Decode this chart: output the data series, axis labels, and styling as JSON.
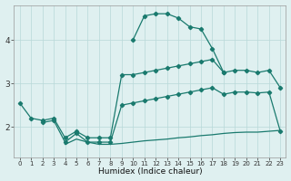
{
  "xlabel": "Humidex (Indice chaleur)",
  "bg_color": "#dff0f0",
  "line_color": "#1a7a6e",
  "grid_color": "#b8d8d8",
  "ylim": [
    1.3,
    4.8
  ],
  "xlim": [
    -0.5,
    23.5
  ],
  "yticks": [
    2,
    3,
    4
  ],
  "xticks": [
    0,
    1,
    2,
    3,
    4,
    5,
    6,
    7,
    8,
    9,
    10,
    11,
    12,
    13,
    14,
    15,
    16,
    17,
    18,
    19,
    20,
    21,
    22,
    23
  ],
  "peak_x": [
    10,
    11,
    12,
    13,
    14,
    15,
    16,
    17,
    18
  ],
  "peak_y": [
    4.0,
    4.55,
    4.6,
    4.6,
    4.5,
    4.3,
    4.25,
    3.8,
    3.25
  ],
  "upper_x": [
    0,
    1,
    2,
    3,
    4,
    5,
    6,
    7,
    8,
    9,
    10,
    11,
    12,
    13,
    14,
    15,
    16,
    17,
    18,
    19,
    20,
    21,
    22,
    23
  ],
  "upper_y": [
    2.55,
    2.2,
    2.15,
    2.2,
    1.75,
    1.9,
    1.75,
    1.75,
    1.75,
    3.2,
    3.2,
    3.25,
    3.3,
    3.35,
    3.4,
    3.45,
    3.5,
    3.55,
    3.25,
    3.3,
    3.3,
    3.25,
    3.3,
    2.9
  ],
  "mid_x": [
    2,
    3,
    4,
    5,
    6,
    7,
    8,
    9,
    10,
    11,
    12,
    13,
    14,
    15,
    16,
    17,
    18,
    19,
    20,
    21,
    22,
    23
  ],
  "mid_y": [
    2.1,
    2.15,
    1.65,
    1.85,
    1.65,
    1.65,
    1.65,
    2.5,
    2.55,
    2.6,
    2.65,
    2.7,
    2.75,
    2.8,
    2.85,
    2.9,
    2.75,
    2.8,
    2.8,
    2.78,
    2.8,
    1.9
  ],
  "lower_x": [
    4,
    5,
    6,
    7,
    8,
    9,
    10,
    11,
    12,
    13,
    14,
    15,
    16,
    17,
    18,
    19,
    20,
    21,
    22,
    23
  ],
  "lower_y": [
    1.6,
    1.72,
    1.65,
    1.6,
    1.6,
    1.62,
    1.65,
    1.68,
    1.7,
    1.72,
    1.75,
    1.77,
    1.8,
    1.82,
    1.85,
    1.87,
    1.88,
    1.88,
    1.9,
    1.92
  ]
}
